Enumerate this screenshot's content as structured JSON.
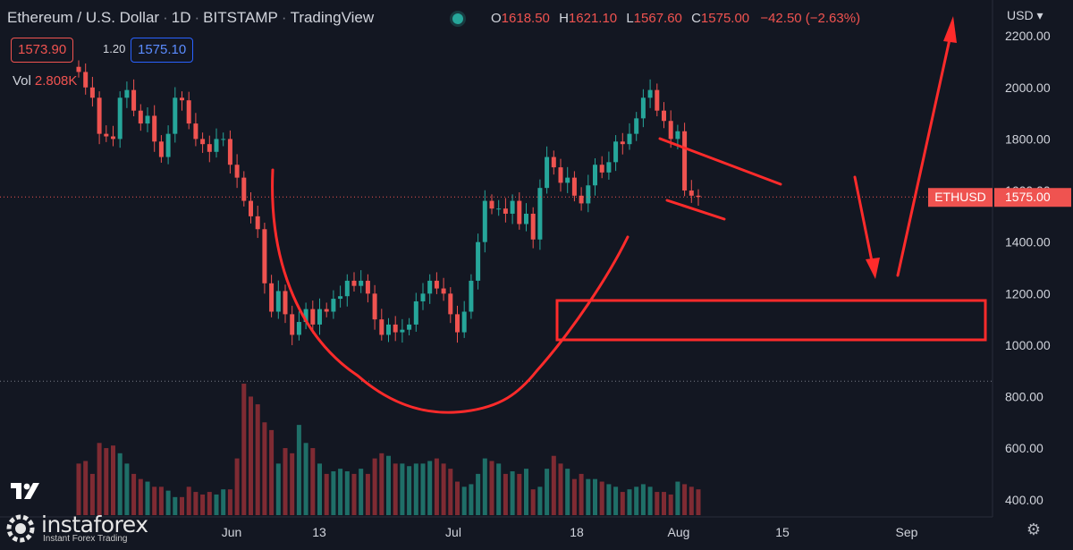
{
  "header": {
    "symbol": "Ethereum / U.S. Dollar",
    "interval": "1D",
    "exchange": "BITSTAMP",
    "provider": "TradingView",
    "ohlc": {
      "o_label": "O",
      "o": "1618.50",
      "h_label": "H",
      "h": "1621.10",
      "l_label": "L",
      "l": "1567.60",
      "c_label": "C",
      "c": "1575.00",
      "change": "−42.50 (−2.63%)"
    },
    "bid": "1573.90",
    "spread": "1.20",
    "ask": "1575.10",
    "vol_label": "Vol",
    "vol_value": "2.808K",
    "currency": "USD"
  },
  "price_tag": {
    "symbol": "ETHUSD",
    "price": "1575.00"
  },
  "brand": {
    "name": "instaforex",
    "tagline": "Instant Forex Trading"
  },
  "colors": {
    "bg": "#131722",
    "up": "#26a69a",
    "down": "#ef5350",
    "annotation": "#ff2b2b",
    "axis_text": "#d1d4dc"
  },
  "chart_data": {
    "type": "candlestick",
    "title": "Ethereum / U.S. Dollar, 1D, BITSTAMP",
    "y_axis": {
      "ticks": [
        400,
        600,
        800,
        1000,
        1200,
        1400,
        1600,
        1800,
        2000,
        2200
      ],
      "labels": [
        "400.00",
        "600.00",
        "800.00",
        "1000.00",
        "1200.00",
        "1400.00",
        "1600.00",
        "1800.00",
        "2000.00",
        "2200.00"
      ]
    },
    "x_axis": {
      "labels": [
        "Jun",
        "13",
        "Jul",
        "18",
        "Aug",
        "15",
        "Sep"
      ]
    },
    "close": [
      2060,
      2000,
      1960,
      1820,
      1810,
      1800,
      1960,
      1990,
      1910,
      1860,
      1890,
      1790,
      1730,
      1820,
      1960,
      1950,
      1860,
      1800,
      1780,
      1750,
      1800,
      1800,
      1700,
      1650,
      1560,
      1500,
      1450,
      1240,
      1130,
      1210,
      1120,
      1040,
      1090,
      1140,
      1080,
      1140,
      1130,
      1180,
      1190,
      1250,
      1230,
      1250,
      1200,
      1100,
      1040,
      1080,
      1050,
      1060,
      1080,
      1170,
      1200,
      1250,
      1220,
      1200,
      1120,
      1050,
      1130,
      1250,
      1400,
      1560,
      1530,
      1530,
      1510,
      1560,
      1470,
      1510,
      1410,
      1610,
      1730,
      1690,
      1630,
      1650,
      1580,
      1550,
      1620,
      1700,
      1670,
      1710,
      1790,
      1780,
      1820,
      1880,
      1960,
      1990,
      1910,
      1870,
      1800,
      1830,
      1600,
      1580,
      1575
    ],
    "volume": [
      560,
      570,
      520,
      640,
      620,
      630,
      600,
      560,
      520,
      500,
      490,
      470,
      470,
      455,
      430,
      430,
      470,
      450,
      440,
      450,
      440,
      460,
      460,
      580,
      870,
      820,
      790,
      720,
      690,
      560,
      620,
      600,
      710,
      640,
      620,
      560,
      520,
      530,
      540,
      530,
      520,
      540,
      520,
      580,
      600,
      590,
      560,
      560,
      550,
      560,
      560,
      570,
      580,
      560,
      540,
      490,
      470,
      480,
      520,
      580,
      570,
      560,
      520,
      530,
      520,
      540,
      460,
      470,
      540,
      590,
      560,
      540,
      500,
      520,
      500,
      500,
      490,
      480,
      470,
      450,
      460,
      470,
      480,
      470,
      450,
      450,
      440,
      490,
      480,
      470,
      460
    ],
    "current_price": 1575.0,
    "ylim": [
      360,
      2260
    ],
    "annotations": [
      "rounded-bottom arc",
      "descending channel lines",
      "support zone rectangle 1020–1180",
      "down arrow",
      "up arrow to 2200"
    ]
  }
}
